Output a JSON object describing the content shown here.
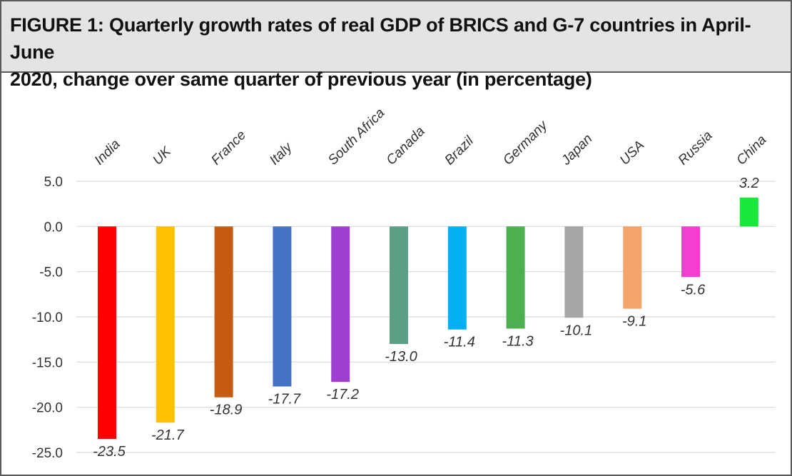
{
  "figure": {
    "title": "FIGURE 1: Quarterly growth rates of real GDP of BRICS and G-7 countries in April-June\n2020, change over same quarter of previous year (in percentage)"
  },
  "chart_data": {
    "type": "bar",
    "title": "FIGURE 1: Quarterly growth rates of real GDP of BRICS and G-7 countries in April-June 2020, change over same quarter of previous year (in percentage)",
    "xlabel": "",
    "ylabel": "",
    "categories": [
      "India",
      "UK",
      "France",
      "Italy",
      "South Africa",
      "Canada",
      "Brazil",
      "Germany",
      "Japan",
      "USA",
      "Russia",
      "China"
    ],
    "values": [
      -23.5,
      -21.7,
      -18.9,
      -17.7,
      -17.2,
      -13.0,
      -11.4,
      -11.3,
      -10.1,
      -9.1,
      -5.6,
      3.2
    ],
    "value_labels": [
      "-23.5",
      "-21.7",
      "-18.9",
      "-17.7",
      "-17.2",
      "-13.0",
      "-11.4",
      "-11.3",
      "-10.1",
      "-9.1",
      "-5.6",
      "3.2"
    ],
    "colors": [
      "#ff0000",
      "#ffc000",
      "#c55a11",
      "#4472c4",
      "#9e3fd1",
      "#5b9f84",
      "#00b0f0",
      "#4caf50",
      "#a6a6a6",
      "#f4a46a",
      "#f23fd0",
      "#18e83a"
    ],
    "ylim": [
      -25,
      5
    ],
    "yticks": [
      5,
      0,
      -5,
      -10,
      -15,
      -20,
      -25
    ],
    "ytick_labels": [
      "5.0",
      "0.0",
      "-5.0",
      "-10.0",
      "-15.0",
      "-20.0",
      "-25.0"
    ],
    "grid": true,
    "legend": "none"
  }
}
